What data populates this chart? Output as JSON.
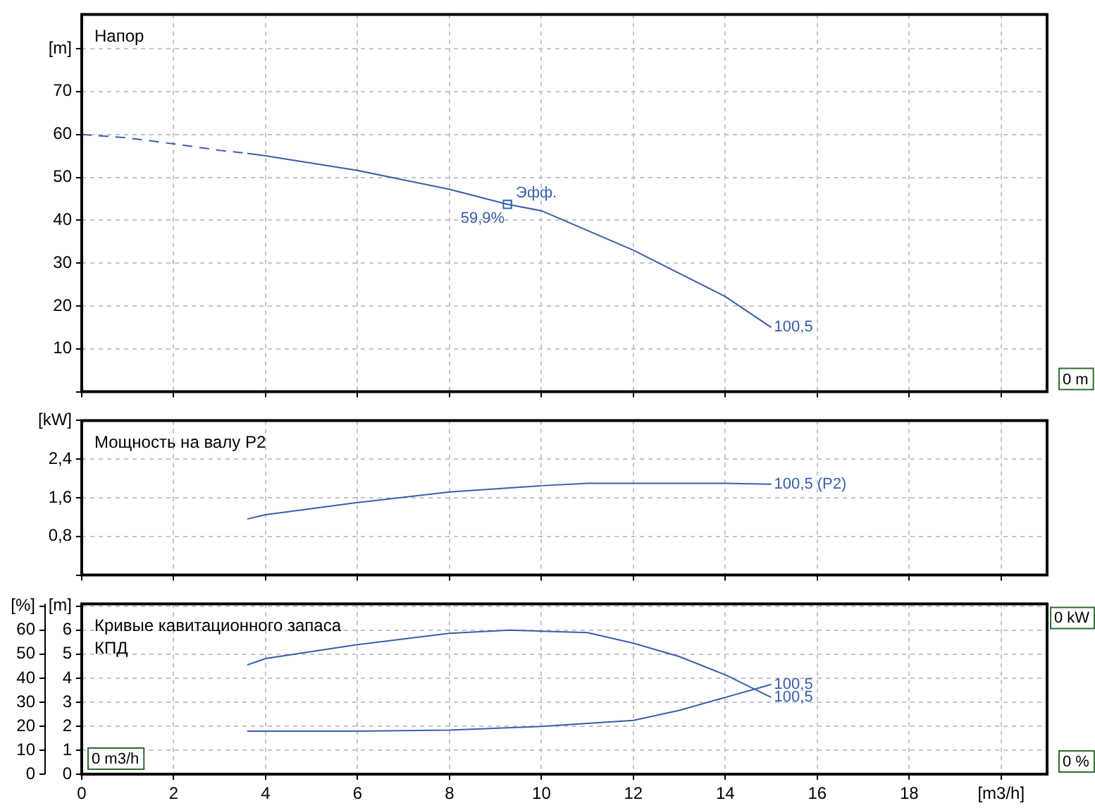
{
  "chart_data": [
    {
      "type": "line",
      "title": "Напор",
      "xlim": [
        0,
        21
      ],
      "ylim": [
        0,
        88
      ],
      "xticks": [
        0,
        2,
        4,
        6,
        8,
        10,
        12,
        14,
        16,
        18,
        20
      ],
      "yticks": [
        {
          "value": 0,
          "label": null
        },
        10,
        20,
        30,
        40,
        50,
        60,
        70,
        {
          "value": 80,
          "label": "[m]"
        }
      ],
      "grid": true,
      "tick_labels": "y",
      "series": [
        {
          "color": "#3a5ea8",
          "line_style": "dashed",
          "marker": "none",
          "x": [
            0,
            1,
            2,
            3,
            3.6
          ],
          "values": [
            60,
            59.2,
            57.8,
            56.3,
            55.6
          ]
        },
        {
          "color": "#3a5ea8",
          "marker": "none",
          "x": [
            3.6,
            4,
            6,
            8,
            9.26,
            10,
            12,
            14,
            15
          ],
          "values": [
            55.6,
            55,
            51.6,
            47.2,
            43.7,
            42.2,
            33,
            22.2,
            15
          ]
        },
        {
          "type": "scatter",
          "color": "#3a5ea8",
          "marker": "square",
          "x": [
            9.26
          ],
          "values": [
            43.7
          ]
        }
      ],
      "annotations": [
        "Эфф.",
        "59,9%",
        "100,5",
        "0 m"
      ]
    },
    {
      "type": "line",
      "title": "Мощность на валу P2",
      "xlim": [
        0,
        21
      ],
      "ylim": [
        0,
        3.2
      ],
      "xticks": [
        0,
        2,
        4,
        6,
        8,
        10,
        12,
        14,
        16,
        18,
        20
      ],
      "yticks": [
        {
          "value": 0,
          "label": null
        },
        {
          "value": 0.8,
          "label": "0,8"
        },
        {
          "value": 1.6,
          "label": "1,6"
        },
        {
          "value": 2.4,
          "label": "2,4"
        },
        {
          "value": 3.2,
          "label": "[kW]"
        }
      ],
      "grid": true,
      "tick_labels": "y",
      "series": [
        {
          "color": "#3a5ea8",
          "marker": "none",
          "x": [
            3.6,
            4,
            6,
            8,
            10,
            11,
            14,
            15
          ],
          "values": [
            1.16,
            1.25,
            1.5,
            1.72,
            1.85,
            1.9,
            1.9,
            1.88
          ]
        }
      ],
      "annotations": [
        "100,5 (P2)"
      ]
    },
    {
      "type": "line",
      "title": "Кривые кавитационного запаса",
      "subtitle": "КПД",
      "xlim": [
        0,
        21
      ],
      "ylim": [
        0,
        71
      ],
      "y2lim": [
        0,
        7.1
      ],
      "xticks": [
        0,
        2,
        4,
        6,
        8,
        10,
        12,
        14,
        16,
        18,
        {
          "value": 20,
          "label": "[m3/h]"
        }
      ],
      "yticks": [
        0,
        10,
        20,
        30,
        40,
        50,
        60,
        {
          "value": 70,
          "label": "[%]"
        }
      ],
      "y2ticks": [
        0,
        1,
        2,
        3,
        4,
        5,
        6,
        {
          "value": 7,
          "label": "[m]"
        }
      ],
      "grid": true,
      "series": [
        {
          "color": "#3a5ea8",
          "marker": "none",
          "x": [
            3.6,
            4,
            6,
            8,
            9.3,
            10,
            11,
            12,
            13,
            14,
            15
          ],
          "values": [
            45.5,
            48.2,
            54,
            58.7,
            60,
            59.6,
            59,
            54.6,
            49,
            41.4,
            32
          ]
        },
        {
          "color": "#3a5ea8",
          "marker": "none",
          "axis": "y2",
          "x": [
            3.6,
            6,
            8,
            10,
            12,
            13,
            14,
            15
          ],
          "values": [
            1.79,
            1.79,
            1.84,
            1.99,
            2.24,
            2.66,
            3.2,
            3.74
          ]
        }
      ],
      "annotations": [
        "100,5",
        "100,5",
        "0 %",
        "0 kW",
        "0 m3/h"
      ]
    }
  ]
}
